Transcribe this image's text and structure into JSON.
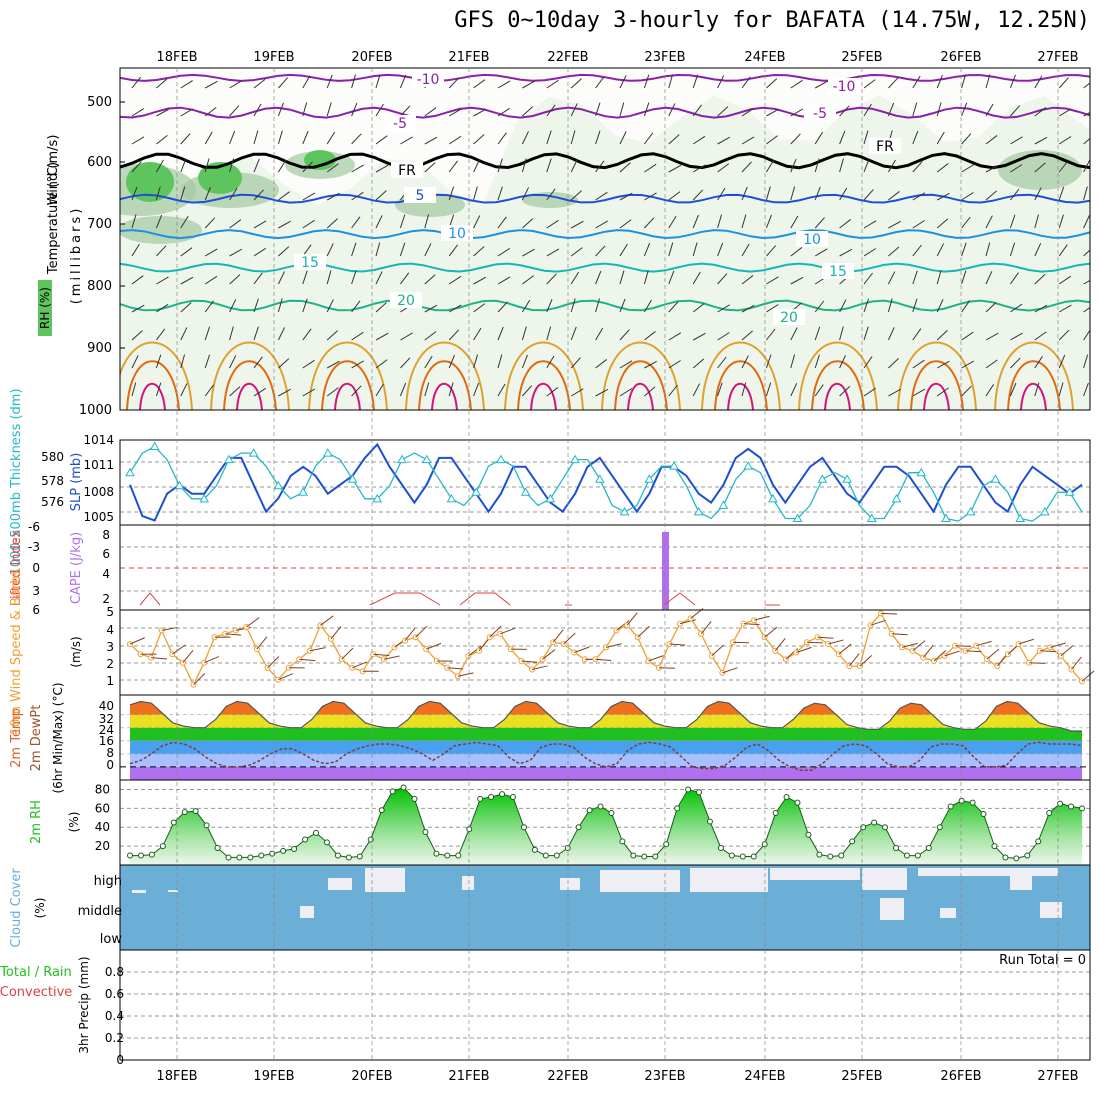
{
  "title": "GFS 0~10day 3-hourly for BAFATA (14.75W, 12.25N)",
  "days": [
    "18FEB",
    "19FEB",
    "20FEB",
    "21FEB",
    "22FEB",
    "23FEB",
    "24FEB",
    "25FEB",
    "26FEB",
    "27FEB"
  ],
  "colors": {
    "rh_fill": "#d9ead3",
    "rh_fill2": "#a3c9a0",
    "rh_fill3": "#5ec45e",
    "iso_m10": "#8b1fa9",
    "iso_m5": "#8b1fa9",
    "iso_fr": "#000000",
    "iso_5": "#1f4fd6",
    "iso_10": "#1e90e0",
    "iso_15": "#18b5b5",
    "iso_20": "#1fb28a",
    "iso_25": "#e0a030",
    "iso_30": "#e06a10",
    "iso_35": "#d0147c",
    "slp": "#1e4fd0",
    "thickness": "#23b8c8",
    "cape": "#b070f0",
    "lifted": "#e04040",
    "wind": "#f0a030",
    "barb": "#804020",
    "rh2m": "#1fc01f",
    "cloud": "#6baed6",
    "cloud_gap": "#f0eef5"
  },
  "panel1": {
    "ylabel_wind": "Wind (m/s)",
    "ylabel_temp": "Temperature (°C)",
    "ylabel_rh": "RH (%)",
    "ylabel_mb": "(millibars)",
    "yticks": [
      "500",
      "600",
      "700",
      "800",
      "900",
      "1000"
    ],
    "isotherm_labels": [
      {
        "label": "-10",
        "color": "iso_m10"
      },
      {
        "label": "-10",
        "color": "iso_m10"
      },
      {
        "label": "-5",
        "color": "iso_m5"
      },
      {
        "label": "-5",
        "color": "iso_m5"
      },
      {
        "label": "FR",
        "color": "iso_fr"
      },
      {
        "label": "FR",
        "color": "iso_fr"
      },
      {
        "label": "5",
        "color": "iso_5"
      },
      {
        "label": "10",
        "color": "iso_10"
      },
      {
        "label": "10",
        "color": "iso_10"
      },
      {
        "label": "15",
        "color": "iso_15"
      },
      {
        "label": "15",
        "color": "iso_15"
      },
      {
        "label": "20",
        "color": "iso_20"
      },
      {
        "label": "20",
        "color": "iso_20"
      }
    ]
  },
  "panel2": {
    "ylabel_thk": "1000-500mb Thickness (dm)",
    "ylabel_slp": "SLP (mb)",
    "thk_ticks": [
      "580",
      "578",
      "576"
    ],
    "slp_ticks": [
      "1014",
      "1011",
      "1008",
      "1005"
    ]
  },
  "panel3": {
    "ylabel_li": "Lifted Index",
    "ylabel_cape": "CAPE (J/kg)",
    "li_ticks": [
      "-6",
      "-3",
      "0",
      "3",
      "6"
    ],
    "cape_ticks": [
      "8",
      "6",
      "4",
      "2"
    ]
  },
  "panel4": {
    "ylabel": "10m Wind Speed & Barbs",
    "unit": "(m/s)",
    "ticks": [
      "5",
      "4",
      "3",
      "2",
      "1"
    ]
  },
  "panel5": {
    "ylabel1": "2m Temp",
    "ylabel2": "2m DewPt",
    "ylabel3": "(6hr Min/Max) (°C)",
    "ticks": [
      "40",
      "32",
      "24",
      "16",
      "8",
      "0"
    ]
  },
  "panel6": {
    "ylabel": "2m RH",
    "unit": "(%)",
    "ticks": [
      "80",
      "60",
      "40",
      "20"
    ]
  },
  "panel7": {
    "ylabel": "Cloud Cover",
    "unit": "(%)",
    "levels": [
      "high",
      "middle",
      "low"
    ]
  },
  "panel8": {
    "ylabel1": "Total / Rain",
    "ylabel2": "Convective",
    "ylabel3": "3hr Precip (mm)",
    "ticks": [
      "0.8",
      "0.6",
      "0.4",
      "0.2",
      "0"
    ],
    "run_total": "Run Total = 0"
  },
  "chart_data": [
    {
      "type": "line",
      "title": "1000-500mb Thickness (dm) / SLP (mb)",
      "series": [
        {
          "name": "SLP (mb)",
          "values": [
            1009,
            1005.5,
            1005,
            1008,
            1009,
            1008,
            1008,
            1010,
            1012,
            1012,
            1009,
            1006,
            1007.5,
            1010,
            1011,
            1010,
            1008,
            1009,
            1010,
            1012,
            1013.5,
            1011,
            1009,
            1007,
            1009,
            1012,
            1012,
            1010,
            1008,
            1006,
            1008,
            1011,
            1011,
            1009,
            1007,
            1006,
            1008,
            1011,
            1012,
            1010,
            1008,
            1006,
            1008,
            1011,
            1011,
            1010,
            1008,
            1007,
            1009,
            1012,
            1013,
            1012,
            1009,
            1007,
            1009,
            1011,
            1012,
            1010,
            1008,
            1007,
            1009,
            1011,
            1011,
            1010,
            1008,
            1006,
            1009,
            1011,
            1011,
            1009,
            1007,
            1006,
            1009,
            1011,
            1010,
            1009,
            1008,
            1009
          ]
        },
        {
          "name": "Thickness (dm)",
          "values": [
            579,
            580.5,
            581,
            580,
            578,
            577,
            577,
            578,
            580,
            580.5,
            580.5,
            579.5,
            578,
            577,
            577.5,
            579.5,
            580.5,
            580,
            578.5,
            577,
            577,
            578,
            580,
            580.5,
            580,
            578.5,
            577,
            576.5,
            577.5,
            579.5,
            580,
            579.5,
            577.5,
            576.5,
            577,
            578.5,
            580,
            580,
            578.5,
            576.5,
            576,
            576.5,
            578.5,
            579.5,
            579.5,
            578,
            576,
            575.5,
            576.5,
            578.5,
            579.5,
            579,
            577,
            575.5,
            575.5,
            576.5,
            578.5,
            579,
            578.5,
            576.5,
            575.5,
            575.5,
            577,
            579,
            579,
            577.5,
            575.5,
            575.3,
            576,
            578,
            578.5,
            577.5,
            575.5,
            575.3,
            576,
            577.5,
            577.5,
            576
          ]
        }
      ]
    },
    {
      "type": "bar",
      "title": "CAPE (J/kg)",
      "x": [
        "23FEB 00Z"
      ],
      "values": [
        8
      ]
    },
    {
      "type": "line",
      "title": "10m Wind Speed (m/s)",
      "series": [
        {
          "name": "10m Wind Speed",
          "values": [
            3,
            2.4,
            2.2,
            3.8,
            2.4,
            1.9,
            0.6,
            1.9,
            3.4,
            3.6,
            3.8,
            4,
            2.7,
            1.6,
            0.9,
            1.6,
            2.1,
            2.6,
            4.1,
            3.3,
            2.1,
            1.6,
            1.4,
            2.4,
            2.1,
            2.8,
            3.2,
            3.4,
            2.7,
            2,
            1.6,
            1.1,
            2.3,
            2.6,
            3.4,
            3.6,
            2.7,
            2,
            1.5,
            2.1,
            3.1,
            3,
            2.5,
            2.1,
            2.1,
            2.8,
            3.8,
            4.1,
            3.4,
            2,
            1.6,
            3,
            4.2,
            4.5,
            3.6,
            2.3,
            1.3,
            3.1,
            4.2,
            4.4,
            3.4,
            2.6,
            2.1,
            2.5,
            3.1,
            3.4,
            3,
            2.4,
            1.7,
            1.7,
            4.1,
            4.8,
            3.6,
            2.8,
            2.6,
            2.2,
            2,
            2.3,
            2.9,
            2.6,
            2.9,
            2.1,
            1.7,
            2.4,
            3,
            1.9,
            2.6,
            2.8,
            2.3,
            1.5,
            0.8
          ]
        }
      ]
    },
    {
      "type": "area",
      "title": "2m Temp / 2m DewPt (°C)",
      "series": [
        {
          "name": "2m Temp",
          "values": [
            38,
            40,
            39,
            33,
            27,
            25,
            24,
            24,
            29,
            37,
            40,
            39,
            33,
            27,
            25,
            24,
            24,
            29,
            37,
            40,
            39,
            33,
            27,
            25,
            24,
            24,
            29,
            37,
            40,
            39,
            33,
            27,
            25,
            24,
            24,
            29,
            37,
            40,
            39,
            33,
            27,
            25,
            24,
            24,
            29,
            37,
            40,
            39,
            33,
            27,
            25,
            24,
            24,
            29,
            37,
            40,
            39,
            33,
            27,
            25,
            24,
            24,
            29,
            36,
            39,
            38,
            32,
            26,
            24,
            23,
            23,
            28,
            36,
            39,
            38,
            32,
            26,
            24,
            23,
            23,
            28,
            37,
            40,
            39,
            33,
            27,
            25,
            24,
            22,
            22
          ]
        },
        {
          "name": "2m DewPt",
          "values": [
            2,
            4,
            8,
            13,
            15,
            14,
            11,
            6,
            2,
            0,
            0,
            1,
            4,
            8,
            11,
            11,
            8,
            4,
            2,
            3,
            8,
            11,
            13,
            14,
            14,
            13,
            11,
            8,
            4,
            8,
            13,
            14,
            15,
            14,
            13,
            6,
            2,
            4,
            12,
            14,
            14,
            12,
            6,
            2,
            0,
            2,
            10,
            14,
            15,
            14,
            12,
            6,
            0,
            -1,
            -1,
            1,
            6,
            12,
            14,
            10,
            4,
            0,
            -2,
            -2,
            2,
            8,
            13,
            14,
            13,
            8,
            2,
            0,
            0,
            4,
            12,
            14,
            14,
            13,
            6,
            0,
            0,
            1,
            8,
            14,
            15,
            14,
            14,
            14,
            13
          ]
        }
      ]
    },
    {
      "type": "area",
      "title": "2m RH (%)",
      "series": [
        {
          "name": "2m RH",
          "values": [
            10,
            10,
            11,
            20,
            45,
            56,
            57,
            42,
            18,
            8,
            8,
            8,
            10,
            12,
            15,
            17,
            27,
            34,
            24,
            10,
            8,
            9,
            27,
            58,
            78,
            82,
            70,
            35,
            12,
            10,
            10,
            38,
            70,
            72,
            75,
            72,
            40,
            16,
            10,
            10,
            18,
            40,
            58,
            62,
            55,
            25,
            10,
            9,
            9,
            22,
            60,
            80,
            77,
            46,
            18,
            10,
            9,
            9,
            22,
            55,
            72,
            66,
            32,
            11,
            9,
            10,
            25,
            40,
            45,
            40,
            18,
            10,
            10,
            18,
            40,
            62,
            68,
            66,
            54,
            20,
            8,
            7,
            10,
            25,
            55,
            65,
            62,
            60
          ]
        }
      ]
    },
    {
      "type": "bar",
      "title": "3hr Precip (mm)",
      "x": [],
      "values": [],
      "ylim": [
        0,
        1
      ]
    }
  ]
}
